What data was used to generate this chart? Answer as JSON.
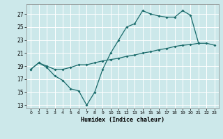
{
  "title": "",
  "xlabel": "Humidex (Indice chaleur)",
  "bg_color": "#cce8ea",
  "line_color": "#1a6b6b",
  "grid_color": "#ffffff",
  "xlim": [
    -0.5,
    23.5
  ],
  "ylim": [
    12.5,
    28.5
  ],
  "yticks": [
    13,
    15,
    17,
    19,
    21,
    23,
    25,
    27
  ],
  "xticks": [
    0,
    1,
    2,
    3,
    4,
    5,
    6,
    7,
    8,
    9,
    10,
    11,
    12,
    13,
    14,
    15,
    16,
    17,
    18,
    19,
    20,
    21,
    22,
    23
  ],
  "xtick_labels": [
    "0",
    "1",
    "2",
    "3",
    "4",
    "5",
    "6",
    "7",
    "8",
    "9",
    "10",
    "11",
    "12",
    "13",
    "14",
    "15",
    "16",
    "17",
    "18",
    "19",
    "20",
    "21",
    "22",
    "23"
  ],
  "series1_x": [
    0,
    1,
    2,
    3,
    4,
    5,
    6,
    7,
    8,
    9,
    10,
    11,
    12,
    13,
    14,
    15,
    16,
    17,
    18,
    19,
    20,
    21
  ],
  "series1_y": [
    18.5,
    19.5,
    18.8,
    17.5,
    16.8,
    15.5,
    15.2,
    13.0,
    15.0,
    18.5,
    21.0,
    23.0,
    25.0,
    25.5,
    27.5,
    27.0,
    26.7,
    26.5,
    26.5,
    27.5,
    26.8,
    22.5
  ],
  "series2_x": [
    0,
    1,
    2,
    3,
    4,
    5,
    6,
    7,
    8,
    9,
    10,
    11,
    12,
    13,
    14,
    15,
    16,
    17,
    18,
    19,
    20,
    21,
    22,
    23
  ],
  "series2_y": [
    18.5,
    19.5,
    19.0,
    18.5,
    18.5,
    18.8,
    19.2,
    19.2,
    19.5,
    19.8,
    20.0,
    20.2,
    20.5,
    20.7,
    21.0,
    21.2,
    21.5,
    21.7,
    22.0,
    22.2,
    22.3,
    22.5,
    22.5,
    22.2
  ]
}
